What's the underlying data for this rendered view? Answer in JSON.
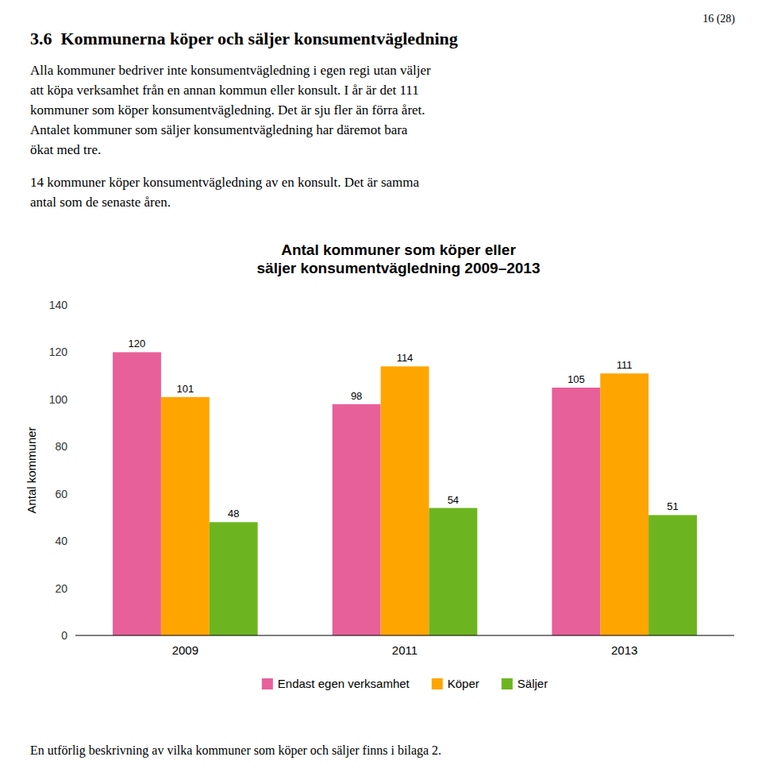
{
  "page_number": "16 (28)",
  "heading": "3.6  Kommunerna köper och säljer konsumentvägledning",
  "paragraphs": [
    [
      "Alla kommuner bedriver inte konsumentvägledning i egen regi utan väljer",
      "att köpa verksamhet från en annan kommun eller konsult. I år är det 111",
      "kommuner som köper konsumentvägledning. Det är sju fler än förra året.",
      "Antalet kommuner som säljer konsumentvägledning har däremot bara",
      "ökat med tre."
    ],
    [
      "14 kommuner köper konsumentvägledning av en konsult. Det är samma",
      "antal som de senaste åren."
    ]
  ],
  "footer": "En utförlig beskrivning av vilka kommuner som köper och säljer finns i bilaga 2.",
  "chart_data": {
    "type": "bar",
    "title": "Antal kommuner som köper eller\nsäljer konsumentvägledning 2009–2013",
    "y_label": "Antal kommuner",
    "categories": [
      "2009",
      "2011",
      "2013"
    ],
    "series": [
      {
        "name": "Endast egen verksamhet",
        "color": "#E8609A",
        "values": [
          120,
          98,
          105
        ]
      },
      {
        "name": "Köper",
        "color": "#FFA500",
        "values": [
          101,
          114,
          111
        ]
      },
      {
        "name": "Säljer",
        "color": "#6DB520",
        "values": [
          48,
          54,
          51
        ]
      }
    ],
    "ylim": [
      0,
      140
    ],
    "yticks": [
      0,
      20,
      40,
      60,
      80,
      100,
      120,
      140
    ],
    "grid": false,
    "legend": "bottom",
    "data_labels": true
  }
}
